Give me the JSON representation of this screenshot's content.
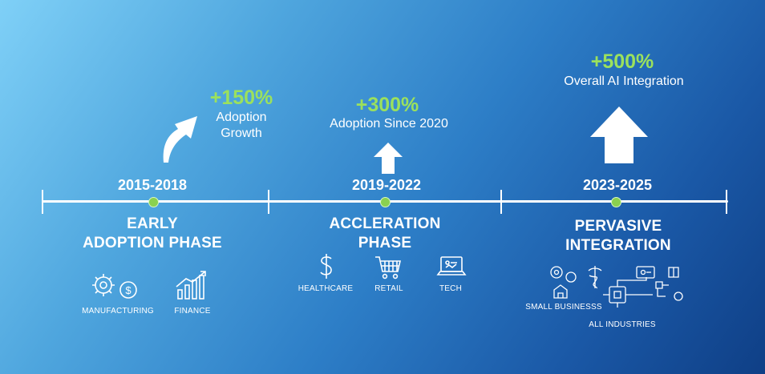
{
  "timeline": {
    "phases": [
      {
        "years": "2015-2018",
        "phase_line1": "EARLY",
        "phase_line2": "ADOPTION PHASE",
        "stat_value": "+150%",
        "stat_label_line1": "Adoption",
        "stat_label_line2": "Growth",
        "industries": [
          {
            "label": "MANUFACTURING",
            "icon": "gear-dollar-icon"
          },
          {
            "label": "FINANCE",
            "icon": "bar-chart-trend-icon"
          }
        ]
      },
      {
        "years": "2019-2022",
        "phase_line1": "ACCLERATION",
        "phase_line2": "PHASE",
        "stat_value": "+300%",
        "stat_label": "Adoption Since 2020",
        "industries": [
          {
            "label": "HEALTHCARE",
            "icon": "dollar-icon"
          },
          {
            "label": "RETAIL",
            "icon": "shopping-cart-icon"
          },
          {
            "label": "TECH",
            "icon": "laptop-icon"
          }
        ]
      },
      {
        "years": "2023-2025",
        "phase_line1": "PERVASIVE",
        "phase_line2": "INTEGRATION",
        "stat_value": "+500%",
        "stat_label": "Overall AI Integration",
        "industries": [
          {
            "label": "SMALL BUSINESSS",
            "icon": "small-business-icon"
          },
          {
            "label": "ALL INDUSTRIES",
            "icon": "network-hub-icon"
          }
        ]
      }
    ]
  },
  "colors": {
    "accent_green": "#9be15d",
    "dot_green": "#8ad14f",
    "background_light": "#7fd0f7",
    "background_dark": "#0f3f86",
    "text": "#ffffff"
  }
}
